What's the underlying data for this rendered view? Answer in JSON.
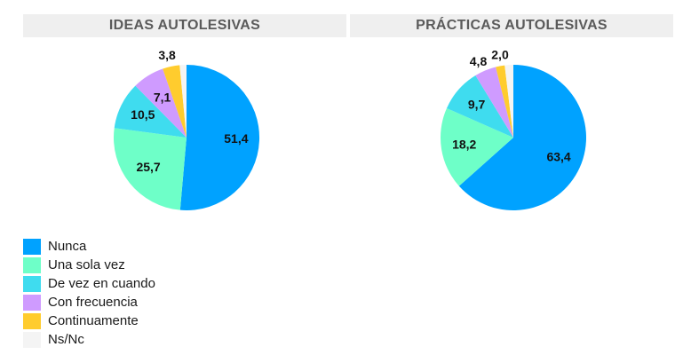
{
  "chart_data": [
    {
      "type": "pie",
      "title": "IDEAS AUTOLESIVAS",
      "categories": [
        "Nunca",
        "Una sola vez",
        "De vez en cuando",
        "Con frecuencia",
        "Continuamente",
        "Ns/Nc"
      ],
      "values": [
        51.4,
        25.7,
        10.5,
        7.1,
        3.8,
        1.5
      ],
      "data_labels": [
        "51,4",
        "25,7",
        "10,5",
        "7,1",
        "3,8",
        ""
      ],
      "legend": "bottom-left"
    },
    {
      "type": "pie",
      "title": "PRÁCTICAS AUTOLESIVAS",
      "categories": [
        "Nunca",
        "Una sola vez",
        "De vez en cuando",
        "Con frecuencia",
        "Continuamente",
        "Ns/Nc"
      ],
      "values": [
        63.4,
        18.2,
        9.7,
        4.8,
        2.0,
        1.9
      ],
      "data_labels": [
        "63,4",
        "18,2",
        "9,7",
        "4,8",
        "2,0",
        ""
      ],
      "legend": "bottom-left"
    }
  ],
  "colors": [
    "#00a2ff",
    "#6effc8",
    "#3fdcef",
    "#cf9bff",
    "#ffcc2e",
    "#f4f4f4"
  ],
  "legend": {
    "items": [
      "Nunca",
      "Una sola vez",
      "De vez en cuando",
      "Con frecuencia",
      "Continuamente",
      "Ns/Nc"
    ]
  }
}
